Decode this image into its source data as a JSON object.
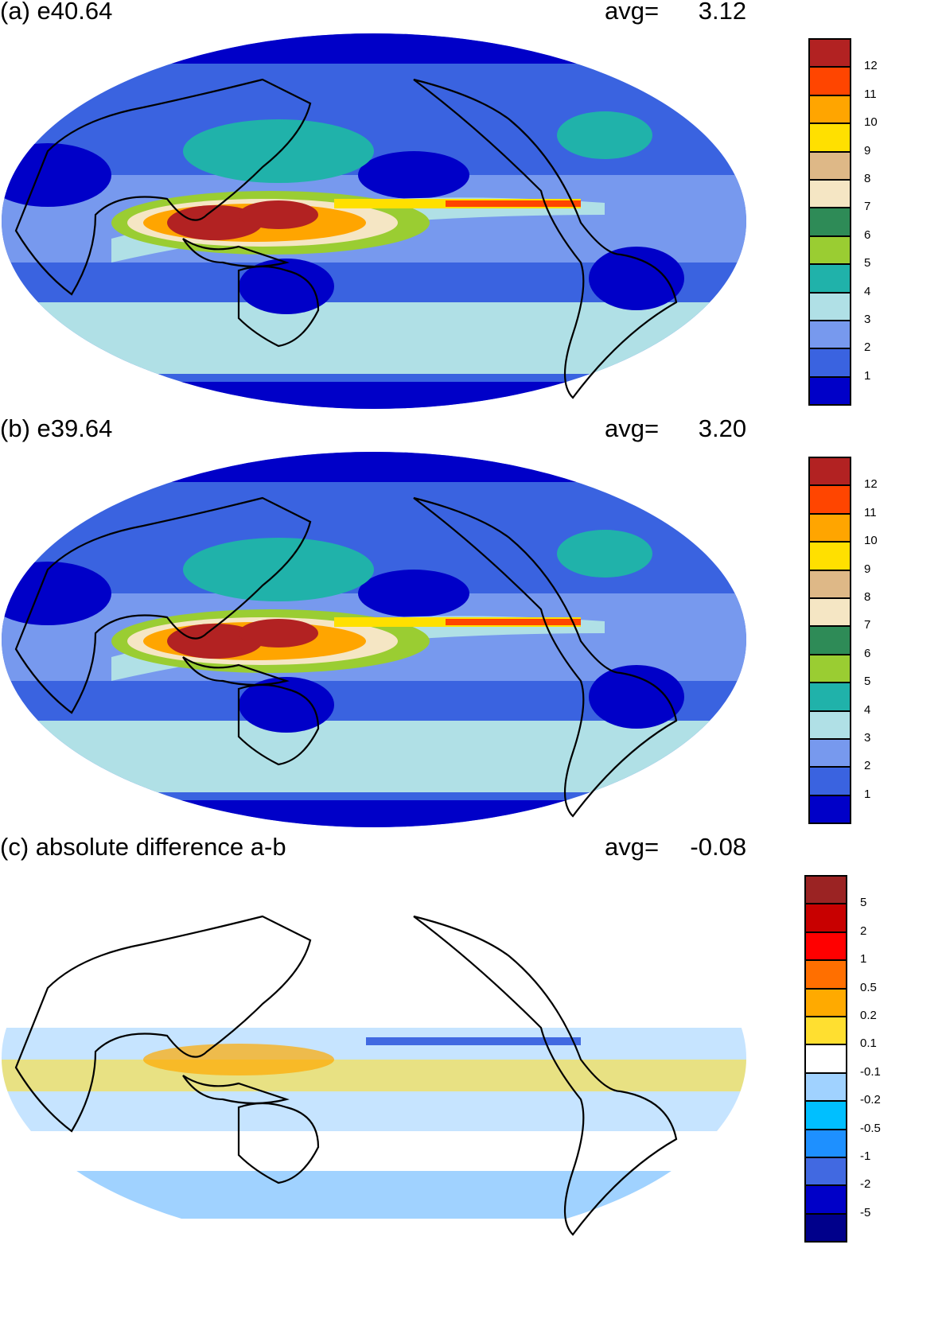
{
  "panels": [
    {
      "label": "(a) e40.64",
      "avg_label": "avg=",
      "avg_value": "3.12",
      "type": "field"
    },
    {
      "label": "(b) e39.64",
      "avg_label": "avg=",
      "avg_value": "3.20",
      "type": "field"
    },
    {
      "label": "(c) absolute difference a-b",
      "avg_label": "avg=",
      "avg_value": "-0.08",
      "type": "diff"
    }
  ],
  "colorbars": {
    "field": {
      "labels": [
        "12",
        "11",
        "10",
        "9",
        "8",
        "7",
        "6",
        "5",
        "4",
        "3",
        "2",
        "1"
      ],
      "colors": [
        "#b22222",
        "#ff4500",
        "#ffa500",
        "#ffe000",
        "#deb887",
        "#f5e6c4",
        "#2e8b57",
        "#9acd32",
        "#20b2aa",
        "#b0e0e6",
        "#7799ee",
        "#3a63e0",
        "#0000c8"
      ]
    },
    "diff": {
      "labels": [
        "5",
        "2",
        "1",
        "0.5",
        "0.2",
        "0.1",
        "-0.1",
        "-0.2",
        "-0.5",
        "-1",
        "-2",
        "-5"
      ],
      "colors": [
        "#9b2323",
        "#c80000",
        "#ff0000",
        "#ff6f00",
        "#ffaa00",
        "#ffdf30",
        "#ffffff",
        "#a0d2ff",
        "#00bfff",
        "#1e90ff",
        "#4169e1",
        "#0000c8",
        "#00008b"
      ]
    }
  }
}
